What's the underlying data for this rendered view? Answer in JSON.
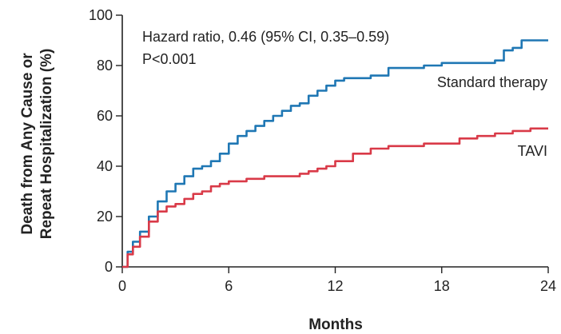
{
  "chart_data": {
    "type": "line",
    "xlabel": "Months",
    "ylabel_lines": [
      "Death from Any Cause or",
      "Repeat Hospitalization (%)"
    ],
    "xlim": [
      0,
      24
    ],
    "ylim": [
      0,
      100
    ],
    "xticks": [
      0,
      6,
      12,
      18,
      24
    ],
    "yticks": [
      0,
      20,
      40,
      60,
      80,
      100
    ],
    "grid": false,
    "annotations": [
      "Hazard ratio, 0.46 (95% CI, 0.35–0.59)",
      "P<0.001"
    ],
    "series": [
      {
        "name": "Standard therapy",
        "color": "#1f77b4",
        "x": [
          0,
          0.3,
          0.6,
          1.0,
          1.5,
          2.0,
          2.5,
          3.0,
          3.5,
          4.0,
          4.5,
          5.0,
          5.5,
          6.0,
          6.5,
          7.0,
          7.5,
          8.0,
          8.5,
          9.0,
          9.5,
          10.0,
          10.5,
          11.0,
          11.5,
          12.0,
          12.5,
          13.0,
          14.0,
          15.0,
          16.0,
          17.0,
          18.0,
          19.0,
          20.0,
          21.0,
          21.5,
          22.0,
          22.5,
          23.0,
          24.0
        ],
        "y": [
          0,
          6,
          10,
          14,
          20,
          26,
          30,
          33,
          36,
          39,
          40,
          42,
          45,
          49,
          52,
          54,
          56,
          58,
          60,
          62,
          64,
          65,
          68,
          70,
          72,
          74,
          75,
          75,
          76,
          79,
          79,
          80,
          81,
          81,
          81,
          82,
          86,
          87,
          90,
          90,
          90
        ]
      },
      {
        "name": "TAVI",
        "color": "#d93a48",
        "x": [
          0,
          0.3,
          0.6,
          1.0,
          1.5,
          2.0,
          2.5,
          3.0,
          3.5,
          4.0,
          4.5,
          5.0,
          5.5,
          6.0,
          7.0,
          8.0,
          9.0,
          10.0,
          10.5,
          11.0,
          11.5,
          12.0,
          13.0,
          14.0,
          15.0,
          16.0,
          17.0,
          18.0,
          19.0,
          20.0,
          21.0,
          22.0,
          23.0,
          24.0
        ],
        "y": [
          0,
          5,
          8,
          12,
          18,
          22,
          24,
          25,
          27,
          29,
          30,
          32,
          33,
          34,
          35,
          36,
          36,
          37,
          38,
          39,
          40,
          42,
          45,
          47,
          48,
          48,
          49,
          49,
          51,
          52,
          53,
          54,
          55,
          55
        ]
      }
    ]
  }
}
